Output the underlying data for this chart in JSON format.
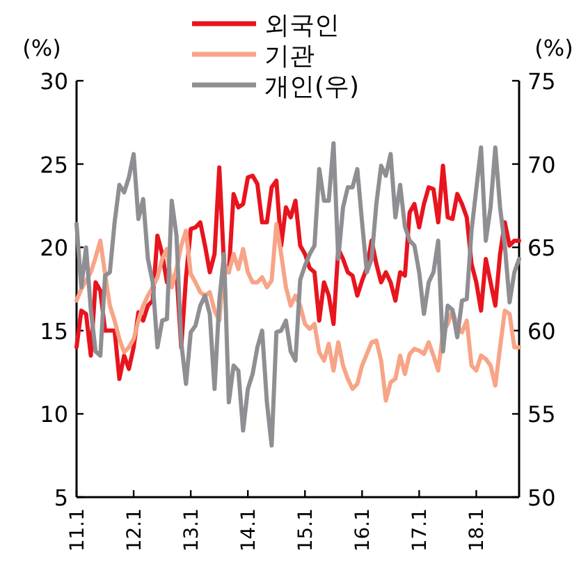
{
  "chart_data": {
    "type": "line",
    "ylabel": "(%)",
    "y2label": "(%)",
    "legend": "top",
    "categories": [
      "11.1",
      null,
      null,
      null,
      null,
      null,
      null,
      null,
      null,
      null,
      null,
      null,
      "12.1",
      null,
      null,
      null,
      null,
      null,
      null,
      null,
      null,
      null,
      null,
      null,
      "13.1",
      null,
      null,
      null,
      null,
      null,
      null,
      null,
      null,
      null,
      null,
      null,
      "14.1",
      null,
      null,
      null,
      null,
      null,
      null,
      null,
      null,
      null,
      null,
      null,
      "15.1",
      null,
      null,
      null,
      null,
      null,
      null,
      null,
      null,
      null,
      null,
      null,
      "16.1",
      null,
      null,
      null,
      null,
      null,
      null,
      null,
      null,
      null,
      null,
      null,
      "17.1",
      null,
      null,
      null,
      null,
      null,
      null,
      null,
      null,
      null,
      null,
      null,
      "18.1",
      null,
      null,
      null,
      null,
      null,
      null,
      null,
      null,
      null
    ],
    "ylim": [
      5,
      30
    ],
    "yticks": [
      5,
      10,
      15,
      20,
      25,
      30
    ],
    "y2lim": [
      50,
      75
    ],
    "y2ticks": [
      50,
      55,
      60,
      65,
      70,
      75
    ],
    "series": [
      {
        "name": "외국인",
        "color": "#e8141e",
        "values": [
          14.0,
          16.2,
          16.0,
          13.5,
          17.9,
          17.4,
          15.0,
          15.0,
          15.0,
          12.1,
          13.5,
          12.7,
          14.0,
          16.1,
          15.6,
          16.5,
          16.8,
          20.7,
          19.6,
          17.9,
          17.9,
          18.5,
          14.0,
          18.2,
          21.1,
          21.2,
          21.5,
          20.1,
          18.5,
          19.6,
          24.8,
          18.9,
          18.5,
          23.2,
          22.4,
          22.6,
          24.2,
          24.3,
          23.8,
          21.5,
          21.5,
          23.6,
          24.0,
          20.1,
          22.4,
          21.8,
          22.8,
          20.1,
          19.6,
          18.75,
          18.5,
          15.6,
          17.9,
          17.1,
          15.4,
          19.9,
          19.3,
          18.5,
          18.3,
          17.1,
          18.0,
          18.75,
          20.4,
          19.0,
          17.9,
          18.5,
          17.9,
          16.8,
          18.5,
          18.3,
          22.1,
          22.6,
          21.2,
          22.6,
          23.6,
          23.5,
          21.5,
          24.9,
          21.8,
          21.7,
          23.2,
          22.6,
          21.8,
          19.0,
          17.9,
          16.2,
          19.3,
          17.9,
          16.5,
          19.6,
          21.5,
          20.1,
          20.4,
          20.4
        ]
      },
      {
        "name": "기관",
        "color": "#f7a487",
        "values": [
          16.8,
          17.5,
          18.0,
          18.5,
          19.4,
          20.4,
          18.4,
          16.5,
          15.6,
          14.5,
          13.7,
          14.0,
          14.5,
          15.6,
          16.5,
          17.1,
          17.6,
          18.2,
          19.3,
          19.9,
          17.6,
          18.7,
          20.1,
          21.0,
          18.4,
          17.9,
          17.3,
          17.1,
          17.3,
          16.2,
          15.6,
          19.0,
          18.5,
          19.6,
          18.7,
          19.9,
          18.5,
          17.9,
          17.9,
          18.2,
          17.6,
          18.0,
          21.4,
          19.6,
          17.6,
          16.5,
          17.1,
          16.5,
          15.4,
          15.1,
          15.4,
          13.7,
          13.2,
          14.2,
          12.6,
          14.3,
          12.9,
          12.1,
          11.5,
          11.8,
          12.9,
          13.6,
          14.3,
          14.4,
          13.2,
          10.8,
          11.9,
          12.1,
          13.5,
          12.4,
          13.6,
          13.9,
          13.8,
          13.6,
          14.3,
          13.5,
          12.6,
          14.9,
          15.4,
          16.2,
          15.3,
          14.9,
          15.6,
          12.9,
          12.6,
          13.5,
          13.3,
          12.9,
          11.7,
          14.0,
          16.2,
          16.0,
          14.0,
          14.0
        ]
      },
      {
        "name": "개인(우)",
        "color": "#8e8e93",
        "axis": "y2",
        "values": [
          66.4,
          62.6,
          65.0,
          61.25,
          58.75,
          58.5,
          63.3,
          63.5,
          66.5,
          68.75,
          68.3,
          69.2,
          70.6,
          66.7,
          67.9,
          64.3,
          62.9,
          59.0,
          60.6,
          60.7,
          67.8,
          65.7,
          59.3,
          56.8,
          59.9,
          60.3,
          61.5,
          62.1,
          61.0,
          56.5,
          61.8,
          64.6,
          55.7,
          57.9,
          57.6,
          54.0,
          56.5,
          57.4,
          59.0,
          60.0,
          55.7,
          53.1,
          59.9,
          60.0,
          60.6,
          58.75,
          58.2,
          63.05,
          63.9,
          64.6,
          65.1,
          69.7,
          67.8,
          67.8,
          71.25,
          64.3,
          67.4,
          68.6,
          68.6,
          69.7,
          66.5,
          63.5,
          64.3,
          67.6,
          69.9,
          69.3,
          70.6,
          66.8,
          68.75,
          66.25,
          65.4,
          65.1,
          63.5,
          61.0,
          62.9,
          63.5,
          65.4,
          58.75,
          61.5,
          61.25,
          59.6,
          61.8,
          61.9,
          66.0,
          68.5,
          71.0,
          65.4,
          67.4,
          71.0,
          67.4,
          65.1,
          61.7,
          63.5,
          64.3
        ]
      }
    ]
  }
}
